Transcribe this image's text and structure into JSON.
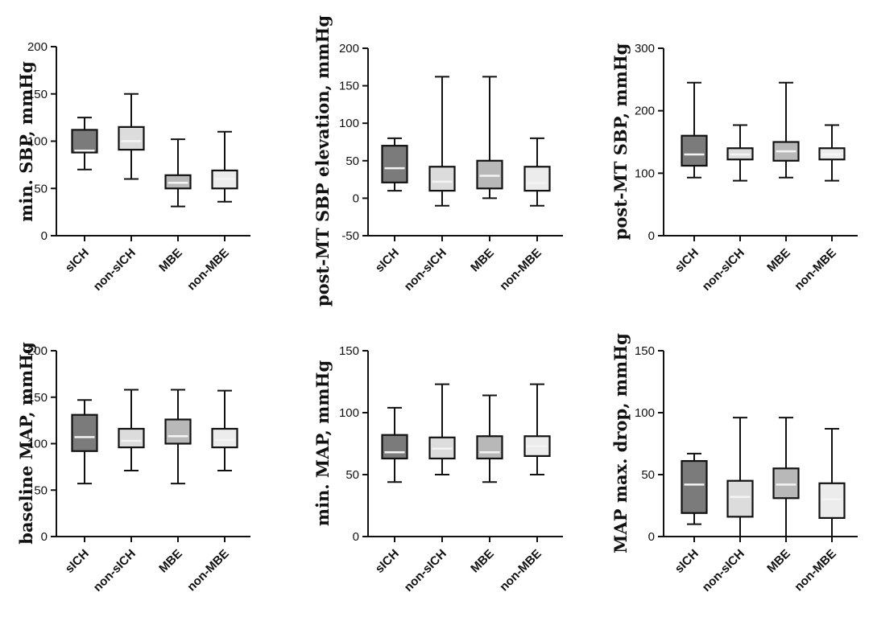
{
  "chart_data": [
    {
      "type": "boxplot",
      "ylabel": "min. SBP, mmHg",
      "ylim": [
        0,
        200
      ],
      "yticks": [
        0,
        50,
        100,
        150,
        200
      ],
      "categories": [
        "sICH",
        "non-sICH",
        "MBE",
        "non-MBE"
      ],
      "boxes": [
        {
          "min": 70,
          "q1": 88,
          "median": 90,
          "q3": 112,
          "max": 125,
          "fill": "#7b7b7b"
        },
        {
          "min": 60,
          "q1": 91,
          "median": 100,
          "q3": 115,
          "max": 150,
          "fill": "#dcdcdc"
        },
        {
          "min": 31,
          "q1": 50,
          "median": 56,
          "q3": 64,
          "max": 102,
          "fill": "#b8b8b8"
        },
        {
          "min": 36,
          "q1": 50,
          "median": 60,
          "q3": 69,
          "max": 110,
          "fill": "#ececec"
        }
      ]
    },
    {
      "type": "boxplot",
      "ylabel": "post-MT SBP elevation, mmHg",
      "ylim": [
        -50,
        200
      ],
      "yticks": [
        -50,
        0,
        50,
        100,
        150,
        200
      ],
      "categories": [
        "sICH",
        "non-sICH",
        "MBE",
        "non-MBE"
      ],
      "boxes": [
        {
          "min": 10,
          "q1": 21,
          "median": 40,
          "q3": 70,
          "max": 80,
          "fill": "#7b7b7b"
        },
        {
          "min": -10,
          "q1": 10,
          "median": 22,
          "q3": 42,
          "max": 162,
          "fill": "#dcdcdc"
        },
        {
          "min": 0,
          "q1": 13,
          "median": 30,
          "q3": 50,
          "max": 162,
          "fill": "#b8b8b8"
        },
        {
          "min": -10,
          "q1": 10,
          "median": 20,
          "q3": 42,
          "max": 80,
          "fill": "#ececec"
        }
      ]
    },
    {
      "type": "boxplot",
      "ylabel": "post-MT SBP, mmHg",
      "ylim": [
        0,
        300
      ],
      "yticks": [
        0,
        100,
        200,
        300
      ],
      "categories": [
        "sICH",
        "non-sICH",
        "MBE",
        "non-MBE"
      ],
      "boxes": [
        {
          "min": 93,
          "q1": 112,
          "median": 130,
          "q3": 160,
          "max": 245,
          "fill": "#7b7b7b"
        },
        {
          "min": 88,
          "q1": 122,
          "median": 130,
          "q3": 140,
          "max": 177,
          "fill": "#dcdcdc"
        },
        {
          "min": 93,
          "q1": 120,
          "median": 135,
          "q3": 150,
          "max": 245,
          "fill": "#b8b8b8"
        },
        {
          "min": 88,
          "q1": 122,
          "median": 130,
          "q3": 140,
          "max": 177,
          "fill": "#ececec"
        }
      ]
    },
    {
      "type": "boxplot",
      "ylabel": "baseline MAP, mmHg",
      "ylim": [
        0,
        200
      ],
      "yticks": [
        0,
        50,
        100,
        150,
        200
      ],
      "categories": [
        "sICH",
        "non-sICH",
        "MBE",
        "non-MBE"
      ],
      "boxes": [
        {
          "min": 57,
          "q1": 92,
          "median": 107,
          "q3": 131,
          "max": 147,
          "fill": "#7b7b7b"
        },
        {
          "min": 71,
          "q1": 96,
          "median": 103,
          "q3": 116,
          "max": 158,
          "fill": "#dcdcdc"
        },
        {
          "min": 57,
          "q1": 100,
          "median": 108,
          "q3": 126,
          "max": 158,
          "fill": "#b8b8b8"
        },
        {
          "min": 71,
          "q1": 96,
          "median": 104,
          "q3": 116,
          "max": 157,
          "fill": "#ececec"
        }
      ]
    },
    {
      "type": "boxplot",
      "ylabel": "min. MAP, mmHg",
      "ylim": [
        0,
        150
      ],
      "yticks": [
        0,
        50,
        100,
        150
      ],
      "categories": [
        "sICH",
        "non-sICH",
        "MBE",
        "non-MBE"
      ],
      "boxes": [
        {
          "min": 44,
          "q1": 63,
          "median": 68,
          "q3": 82,
          "max": 104,
          "fill": "#7b7b7b"
        },
        {
          "min": 50,
          "q1": 63,
          "median": 71,
          "q3": 80,
          "max": 123,
          "fill": "#dcdcdc"
        },
        {
          "min": 44,
          "q1": 63,
          "median": 68,
          "q3": 81,
          "max": 114,
          "fill": "#b8b8b8"
        },
        {
          "min": 50,
          "q1": 65,
          "median": 73,
          "q3": 81,
          "max": 123,
          "fill": "#ececec"
        }
      ]
    },
    {
      "type": "boxplot",
      "ylabel": "MAP max. drop, mmHg",
      "ylim": [
        0,
        150
      ],
      "yticks": [
        0,
        50,
        100,
        150
      ],
      "categories": [
        "sICH",
        "non-sICH",
        "MBE",
        "non-MBE"
      ],
      "boxes": [
        {
          "min": 10,
          "q1": 19,
          "median": 42,
          "q3": 61,
          "max": 67,
          "fill": "#7b7b7b"
        },
        {
          "min": 0,
          "q1": 16,
          "median": 32,
          "q3": 45,
          "max": 96,
          "fill": "#dcdcdc"
        },
        {
          "min": 0,
          "q1": 31,
          "median": 42,
          "q3": 55,
          "max": 96,
          "fill": "#b8b8b8"
        },
        {
          "min": 0,
          "q1": 15,
          "median": 30,
          "q3": 43,
          "max": 87,
          "fill": "#ececec"
        }
      ]
    }
  ]
}
